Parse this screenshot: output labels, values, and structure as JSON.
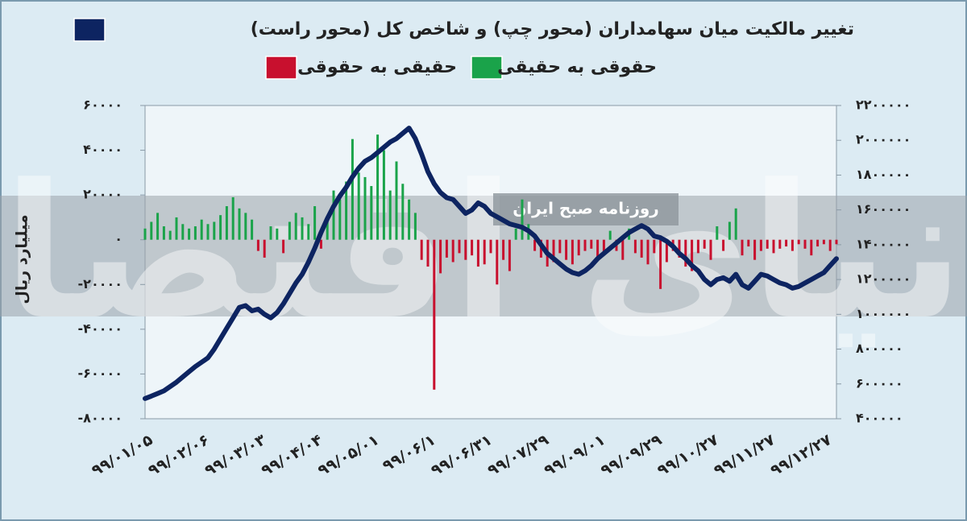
{
  "chart_data": {
    "type": "bar-line",
    "y_axis_label": "میلیارد ریال",
    "watermark": {
      "text": "دنیای اقتصاد",
      "subtext": "روزنامه صبح ایران"
    },
    "categories": [
      "۹۹/۰۱/۰۵",
      null,
      null,
      null,
      null,
      null,
      null,
      null,
      null,
      "۹۹/۰۲/۰۶",
      null,
      null,
      null,
      null,
      null,
      null,
      null,
      null,
      "۹۹/۰۳/۰۳",
      null,
      null,
      null,
      null,
      null,
      null,
      null,
      null,
      "۹۹/۰۴/۰۴",
      null,
      null,
      null,
      null,
      null,
      null,
      null,
      null,
      "۹۹/۰۵/۰۱",
      null,
      null,
      null,
      null,
      null,
      null,
      null,
      null,
      "۹۹/۰۶/۱",
      null,
      null,
      null,
      null,
      null,
      null,
      null,
      null,
      "۹۹/۰۶/۳۱",
      null,
      null,
      null,
      null,
      null,
      null,
      null,
      null,
      "۹۹/۰۷/۲۹",
      null,
      null,
      null,
      null,
      null,
      null,
      null,
      null,
      "۹۹/۰۹/۰۱",
      null,
      null,
      null,
      null,
      null,
      null,
      null,
      null,
      "۹۹/۰۹/۲۹",
      null,
      null,
      null,
      null,
      null,
      null,
      null,
      null,
      "۹۹/۱۰/۲۷",
      null,
      null,
      null,
      null,
      null,
      null,
      null,
      null,
      "۹۹/۱۱/۲۷",
      null,
      null,
      null,
      null,
      null,
      null,
      null,
      null,
      "۹۹/۱۲/۲۷",
      null,
      null
    ],
    "series": [
      {
        "name": "حقوقی به حقیقی",
        "color": "#1aa34a",
        "type": "bar",
        "values": [
          5000,
          8000,
          12000,
          6000,
          4000,
          10000,
          7000,
          5000,
          6000,
          9000,
          7000,
          8000,
          11000,
          15000,
          19000,
          14000,
          12000,
          9000,
          null,
          null,
          6000,
          5000,
          null,
          8000,
          12000,
          10000,
          7000,
          15000,
          null,
          9000,
          22000,
          18000,
          26000,
          45000,
          30000,
          28000,
          24000,
          47000,
          40000,
          22000,
          35000,
          25000,
          18000,
          12000,
          null,
          null,
          null,
          null,
          null,
          null,
          null,
          null,
          null,
          null,
          null,
          null,
          null,
          null,
          null,
          5000,
          18000,
          7000,
          null,
          null,
          null,
          null,
          null,
          null,
          null,
          null,
          null,
          null,
          null,
          null,
          4000,
          null,
          null,
          5000,
          null,
          null,
          null,
          null,
          null,
          null,
          null,
          null,
          null,
          null,
          null,
          null,
          null,
          6000,
          null,
          8000,
          14000,
          null,
          null,
          null,
          null,
          null,
          null,
          null,
          null,
          null,
          null,
          null,
          null,
          null,
          null,
          null,
          null
        ]
      },
      {
        "name": "حقیقی به حقوقی",
        "color": "#c8102e",
        "type": "bar",
        "values": [
          null,
          null,
          null,
          null,
          null,
          null,
          null,
          null,
          null,
          null,
          null,
          null,
          null,
          null,
          null,
          null,
          null,
          null,
          -5000,
          -8000,
          null,
          null,
          -6000,
          null,
          null,
          null,
          null,
          null,
          -4000,
          null,
          null,
          null,
          null,
          null,
          null,
          null,
          null,
          null,
          null,
          null,
          null,
          null,
          null,
          null,
          -9000,
          -12000,
          -67000,
          -15000,
          -8000,
          -10000,
          -6000,
          -9000,
          -7000,
          -12000,
          -11000,
          -6000,
          -20000,
          -9000,
          -14000,
          null,
          null,
          null,
          -5000,
          -8000,
          -12000,
          -10000,
          -6000,
          -9000,
          -11000,
          -7000,
          -5000,
          -4000,
          -8000,
          -6000,
          null,
          -5000,
          -9000,
          null,
          -6000,
          -8000,
          -11000,
          -6000,
          -22000,
          -10000,
          -5000,
          -8000,
          -12000,
          -14000,
          -6000,
          -4000,
          -9000,
          null,
          -5000,
          null,
          null,
          -7000,
          -3000,
          -9000,
          -5000,
          -4000,
          -6000,
          -4000,
          -3000,
          -5000,
          -2000,
          -4000,
          -7000,
          -3000,
          -2000,
          -5000,
          -2000
        ]
      },
      {
        "name": "تغییر مالکیت میان سهامداران (محور چپ) و شاخص کل (محور راست)",
        "color": "#0d2461",
        "type": "line",
        "axis": "y2",
        "values": [
          516000,
          530000,
          545000,
          560000,
          585000,
          610000,
          640000,
          670000,
          700000,
          725000,
          750000,
          800000,
          860000,
          920000,
          980000,
          1040000,
          1050000,
          1020000,
          1030000,
          1000000,
          980000,
          1010000,
          1060000,
          1120000,
          1180000,
          1230000,
          1300000,
          1380000,
          1470000,
          1550000,
          1620000,
          1680000,
          1730000,
          1790000,
          1840000,
          1880000,
          1900000,
          1930000,
          1960000,
          1990000,
          2010000,
          2040000,
          2070000,
          2010000,
          1920000,
          1820000,
          1750000,
          1700000,
          1670000,
          1660000,
          1620000,
          1580000,
          1600000,
          1640000,
          1620000,
          1580000,
          1560000,
          1540000,
          1520000,
          1510000,
          1500000,
          1480000,
          1450000,
          1400000,
          1350000,
          1320000,
          1290000,
          1260000,
          1240000,
          1230000,
          1250000,
          1280000,
          1320000,
          1350000,
          1380000,
          1410000,
          1440000,
          1470000,
          1490000,
          1510000,
          1490000,
          1450000,
          1440000,
          1420000,
          1390000,
          1350000,
          1320000,
          1280000,
          1250000,
          1200000,
          1170000,
          1200000,
          1210000,
          1190000,
          1230000,
          1170000,
          1150000,
          1190000,
          1230000,
          1220000,
          1200000,
          1180000,
          1170000,
          1150000,
          1160000,
          1180000,
          1200000,
          1220000,
          1240000,
          1280000,
          1320000
        ]
      }
    ],
    "ylim": [
      -80000,
      60000
    ],
    "yticks": [
      {
        "value": -80000,
        "label": "-۸۰۰۰۰"
      },
      {
        "value": -60000,
        "label": "-۶۰۰۰۰"
      },
      {
        "value": -40000,
        "label": "-۴۰۰۰۰"
      },
      {
        "value": -20000,
        "label": "-۲۰۰۰۰"
      },
      {
        "value": 0,
        "label": "۰"
      },
      {
        "value": 20000,
        "label": "۲۰۰۰۰"
      },
      {
        "value": 40000,
        "label": "۴۰۰۰۰"
      },
      {
        "value": 60000,
        "label": "۶۰۰۰۰"
      }
    ],
    "y2lim": [
      400000,
      2200000
    ],
    "y2ticks": [
      {
        "value": 400000,
        "label": "۴۰۰۰۰۰"
      },
      {
        "value": 600000,
        "label": "۶۰۰۰۰۰"
      },
      {
        "value": 800000,
        "label": "۸۰۰۰۰۰"
      },
      {
        "value": 1000000,
        "label": "۱۰۰۰۰۰۰"
      },
      {
        "value": 1200000,
        "label": "۱۲۰۰۰۰۰"
      },
      {
        "value": 1400000,
        "label": "۱۴۰۰۰۰۰"
      },
      {
        "value": 1600000,
        "label": "۱۶۰۰۰۰۰"
      },
      {
        "value": 1800000,
        "label": "۱۸۰۰۰۰۰"
      },
      {
        "value": 2000000,
        "label": "۲۰۰۰۰۰۰"
      },
      {
        "value": 2200000,
        "label": "۲۲۰۰۰۰۰"
      }
    ]
  }
}
